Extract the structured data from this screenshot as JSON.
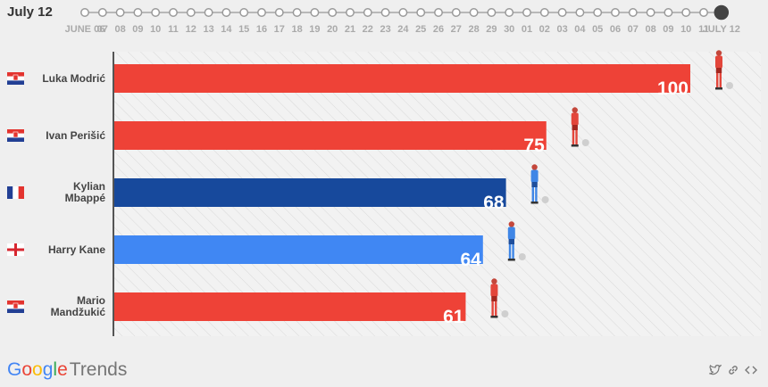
{
  "header": {
    "date": "July 12"
  },
  "timeline": {
    "labels": [
      "JUNE 06",
      "07",
      "08",
      "09",
      "10",
      "11",
      "12",
      "13",
      "14",
      "15",
      "16",
      "17",
      "18",
      "19",
      "20",
      "21",
      "22",
      "23",
      "24",
      "25",
      "26",
      "27",
      "28",
      "29",
      "30",
      "01",
      "02",
      "03",
      "04",
      "05",
      "06",
      "07",
      "08",
      "09",
      "10",
      "11",
      "JULY 12"
    ],
    "current_index": 36
  },
  "chart_data": {
    "type": "bar",
    "orientation": "horizontal",
    "categories": [
      "Luka Modrić",
      "Ivan Perišić",
      "Kylian Mbappé",
      "Harry Kane",
      "Mario Mandžukić"
    ],
    "values": [
      100,
      75,
      68,
      64,
      61
    ],
    "xlim": [
      0,
      100
    ],
    "flags": [
      "croatia",
      "croatia",
      "france",
      "england",
      "croatia"
    ],
    "bar_colors": [
      "#ee4237",
      "#ee4237",
      "#17499c",
      "#4087f3",
      "#ee4237"
    ],
    "player_colors": [
      "#e3463b",
      "#e3463b",
      "#3f86e6",
      "#3f86e6",
      "#e3463b"
    ],
    "grid": false,
    "data_labels": true
  },
  "footer": {
    "logo_letters": [
      "G",
      "o",
      "o",
      "g",
      "l",
      "e"
    ],
    "logo_suffix": "Trends",
    "icons": [
      "twitter-icon",
      "link-icon",
      "embed-icon"
    ]
  }
}
